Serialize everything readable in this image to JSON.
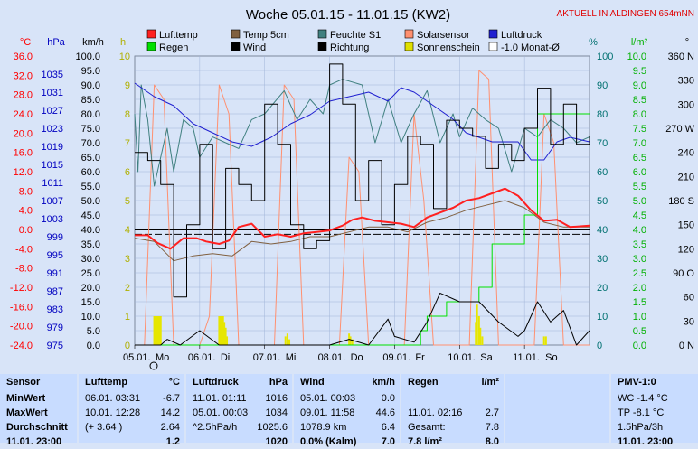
{
  "chart_data": {
    "type": "line",
    "title": "Woche 05.01.15 - 11.01.15 (KW2)",
    "location_note": "AKTUELL IN ALDINGEN 654mNN",
    "x_tick_labels": [
      {
        "date": "05.01.",
        "day": "Mo"
      },
      {
        "date": "06.01.",
        "day": "Di"
      },
      {
        "date": "07.01.",
        "day": "Mi"
      },
      {
        "date": "08.01.",
        "day": "Do"
      },
      {
        "date": "09.01.",
        "day": "Fr"
      },
      {
        "date": "10.01.",
        "day": "Sa"
      },
      {
        "date": "11.01.",
        "day": "So"
      }
    ],
    "x_range_days": [
      0,
      7
    ],
    "axes": [
      {
        "unit": "°C",
        "color": "#ff0000",
        "min": -24,
        "max": 36,
        "ticks": [
          "36.0",
          "32.0",
          "28.0",
          "24.0",
          "20.0",
          "16.0",
          "12.0",
          "8.0",
          "4.0",
          "0.0",
          "-4.0",
          "-8.0",
          "-12.0",
          "-16.0",
          "-20.0",
          "-24.0"
        ]
      },
      {
        "unit": "hPa",
        "color": "#0000c0",
        "min": 975,
        "max": 1039,
        "ticks": [
          "",
          "1035",
          "1031",
          "1027",
          "1023",
          "1019",
          "1015",
          "1011",
          "1007",
          "1003",
          "999",
          "995",
          "991",
          "987",
          "983",
          "979",
          "975"
        ]
      },
      {
        "unit": "km/h",
        "color": "#000000",
        "min": 0,
        "max": 100,
        "ticks": [
          "100.0",
          "95.0",
          "90.0",
          "85.0",
          "80.0",
          "75.0",
          "70.0",
          "65.0",
          "60.0",
          "55.0",
          "50.0",
          "45.0",
          "40.0",
          "35.0",
          "30.0",
          "25.0",
          "20.0",
          "15.0",
          "10.0",
          "5.0",
          "0.0"
        ]
      },
      {
        "unit": "h",
        "color": "#b0b000",
        "min": 0,
        "max": 10,
        "ticks": [
          "10",
          "9",
          "8",
          "7",
          "6",
          "5",
          "4",
          "3",
          "2",
          "1",
          "0"
        ]
      },
      {
        "unit": "%",
        "color": "#007070",
        "min": 0,
        "max": 100,
        "ticks": [
          "100",
          "90",
          "80",
          "70",
          "60",
          "50",
          "40",
          "30",
          "20",
          "10",
          "0"
        ]
      },
      {
        "unit": "l/m²",
        "color": "#00b000",
        "min": 0,
        "max": 10,
        "ticks": [
          "10.0",
          "9.5",
          "9.0",
          "8.5",
          "8.0",
          "7.5",
          "7.0",
          "6.5",
          "6.0",
          "5.5",
          "5.0",
          "4.5",
          "4.0",
          "3.5",
          "3.0",
          "2.5",
          "2.0",
          "1.5",
          "1.0",
          "0.5",
          "0.0"
        ]
      },
      {
        "unit": "°",
        "color": "#000000",
        "min": 0,
        "max": 360,
        "ticks": [
          "360 N",
          "330",
          "300",
          "270 W",
          "240",
          "210",
          "180 S",
          "150",
          "120",
          "90 O",
          "60",
          "30",
          "0 N"
        ]
      }
    ],
    "legend": [
      {
        "name": "Lufttemp",
        "color": "#ff2020"
      },
      {
        "name": "Temp 5cm",
        "color": "#806040"
      },
      {
        "name": "Feuchte S1",
        "color": "#408080"
      },
      {
        "name": "Solarsensor",
        "color": "#ff9070"
      },
      {
        "name": "Luftdruck",
        "color": "#2020d0"
      },
      {
        "name": "Regen",
        "color": "#00e000"
      },
      {
        "name": "Wind",
        "color": "#000000"
      },
      {
        "name": "Richtung",
        "color": "#000000"
      },
      {
        "name": "Sonnenschein",
        "color": "#e0e000"
      },
      {
        "name": "-1.0 Monat-Ø",
        "color": "#ffffff"
      }
    ],
    "series": [
      {
        "name": "Lufttemp",
        "axis": 0,
        "x": [
          0,
          0.2,
          0.35,
          0.55,
          0.75,
          0.95,
          1.1,
          1.3,
          1.45,
          1.6,
          1.8,
          2.0,
          2.2,
          2.4,
          2.6,
          2.8,
          3.0,
          3.2,
          3.35,
          3.5,
          3.7,
          3.9,
          4.1,
          4.3,
          4.5,
          4.7,
          4.9,
          5.1,
          5.3,
          5.5,
          5.7,
          5.9,
          6.1,
          6.3,
          6.5,
          6.7,
          7.0
        ],
        "values": [
          -1.2,
          -1.2,
          -2.8,
          -4.0,
          -1.8,
          -1.8,
          -2.5,
          -3.0,
          -2.3,
          0.5,
          1.2,
          -1.5,
          -1.0,
          -1.5,
          -0.8,
          -0.5,
          -0.2,
          0.8,
          2.0,
          2.5,
          1.8,
          1.5,
          1.2,
          0.5,
          2.5,
          3.5,
          4.5,
          6.0,
          6.5,
          7.5,
          8.5,
          7.0,
          4.0,
          1.8,
          2.0,
          0.5,
          0.8
        ]
      },
      {
        "name": "Temp 5cm",
        "axis": 0,
        "x": [
          0,
          0.3,
          0.6,
          0.9,
          1.2,
          1.5,
          1.8,
          2.1,
          2.4,
          2.7,
          3.0,
          3.3,
          3.6,
          3.9,
          4.2,
          4.5,
          4.8,
          5.1,
          5.4,
          5.7,
          6.0,
          6.3,
          6.6,
          7.0
        ],
        "values": [
          -1.8,
          -2.5,
          -6.5,
          -5.5,
          -5.0,
          -5.5,
          -2.5,
          -3.0,
          -2.5,
          -1.5,
          -1.5,
          -0.5,
          0.5,
          0.5,
          -0.5,
          1.5,
          2.5,
          4.0,
          5.0,
          6.0,
          4.5,
          1.5,
          0.5,
          0.5
        ]
      },
      {
        "name": "Feuchte S1",
        "axis": 4,
        "x": [
          0,
          0.05,
          0.1,
          0.2,
          0.3,
          0.5,
          0.6,
          0.75,
          0.9,
          1.0,
          1.2,
          1.4,
          1.6,
          1.8,
          2.0,
          2.3,
          2.5,
          2.7,
          2.9,
          3.0,
          3.2,
          3.5,
          3.7,
          3.9,
          4.1,
          4.3,
          4.5,
          4.7,
          4.9,
          5.0,
          5.2,
          5.4,
          5.6,
          5.8,
          6.0,
          6.2,
          6.4,
          6.6,
          6.8,
          7.0
        ],
        "values": [
          80,
          60,
          90,
          78,
          55,
          75,
          60,
          78,
          75,
          65,
          72,
          70,
          68,
          78,
          80,
          88,
          78,
          85,
          80,
          90,
          92,
          90,
          70,
          85,
          70,
          80,
          88,
          70,
          80,
          72,
          82,
          78,
          75,
          60,
          75,
          72,
          78,
          75,
          70,
          72
        ]
      },
      {
        "name": "Luftdruck",
        "axis": 1,
        "x": [
          0,
          0.3,
          0.6,
          0.9,
          1.2,
          1.5,
          1.8,
          2.1,
          2.4,
          2.7,
          3.0,
          3.3,
          3.6,
          3.9,
          4.1,
          4.3,
          4.5,
          4.7,
          4.9,
          5.1,
          5.3,
          5.5,
          5.7,
          5.9,
          6.1,
          6.3,
          6.5,
          6.7,
          7.0
        ],
        "values": [
          1033,
          1030,
          1028,
          1024,
          1022,
          1020,
          1019,
          1021,
          1024,
          1026,
          1029,
          1030,
          1031,
          1029,
          1032,
          1031,
          1029,
          1027,
          1025,
          1022,
          1021,
          1020,
          1020,
          1020,
          1016,
          1016,
          1020,
          1021,
          1020
        ]
      },
      {
        "name": "Regen",
        "axis": 5,
        "x": [
          0,
          4.0,
          4.4,
          4.5,
          4.8,
          5.3,
          5.5,
          5.8,
          6.0,
          6.2,
          6.5,
          7.0
        ],
        "values": [
          0,
          0,
          0.5,
          1.0,
          1.5,
          2.0,
          3.5,
          3.5,
          4.5,
          8.0,
          8.0,
          8.0
        ]
      },
      {
        "name": "Wind",
        "axis": 2,
        "x": [
          0,
          0.4,
          0.5,
          0.7,
          1.0,
          1.3,
          1.6,
          2.0,
          2.2,
          2.5,
          2.8,
          3.0,
          3.3,
          3.6,
          3.9,
          4.0,
          4.3,
          4.5,
          4.7,
          5.0,
          5.3,
          5.6,
          5.9,
          6.0,
          6.2,
          6.4,
          6.6,
          6.8,
          7.0
        ],
        "values": [
          0,
          0,
          2,
          0,
          5,
          0,
          0,
          0,
          0,
          0,
          0,
          0,
          2,
          0,
          9,
          3,
          1,
          8,
          18,
          15,
          15,
          8,
          3,
          5,
          15,
          8,
          12,
          0,
          5
        ]
      },
      {
        "name": "Richtung",
        "axis": 6,
        "x": [
          0,
          0.2,
          0.4,
          0.6,
          0.8,
          1.0,
          1.2,
          1.4,
          1.6,
          1.8,
          2.0,
          2.2,
          2.4,
          2.6,
          2.8,
          3.0,
          3.2,
          3.4,
          3.6,
          3.8,
          4.0,
          4.2,
          4.4,
          4.6,
          4.8,
          5.0,
          5.2,
          5.4,
          5.6,
          5.8,
          6.0,
          6.2,
          6.4,
          6.6,
          6.8,
          7.0
        ],
        "values": [
          240,
          230,
          200,
          60,
          150,
          250,
          120,
          220,
          200,
          180,
          300,
          250,
          150,
          120,
          130,
          350,
          300,
          180,
          230,
          150,
          200,
          260,
          250,
          170,
          280,
          270,
          260,
          220,
          250,
          230,
          270,
          320,
          250,
          300,
          250,
          260
        ]
      },
      {
        "name": "Solarsensor",
        "axis": 2,
        "x": [
          0,
          0.15,
          0.3,
          0.45,
          0.6,
          1.0,
          1.15,
          1.3,
          1.45,
          1.6,
          2.0,
          2.15,
          2.3,
          2.45,
          2.6,
          3.0,
          3.15,
          3.3,
          3.45,
          3.6,
          4.0,
          4.15,
          4.3,
          4.45,
          4.6,
          5.0,
          5.15,
          5.3,
          5.45,
          5.6,
          6.0,
          6.15,
          6.3,
          6.45,
          6.6,
          7.0
        ],
        "values": [
          0,
          0,
          90,
          85,
          0,
          0,
          10,
          90,
          80,
          0,
          0,
          0,
          90,
          85,
          0,
          0,
          0,
          65,
          60,
          0,
          0,
          0,
          80,
          50,
          0,
          0,
          0,
          95,
          92,
          0,
          0,
          0,
          80,
          70,
          0,
          0
        ]
      },
      {
        "name": "Sonnenschein",
        "axis": 3,
        "type": "bar",
        "x": [
          0.3,
          0.32,
          0.34,
          0.36,
          0.38,
          0.4,
          1.3,
          1.32,
          1.34,
          1.36,
          1.38,
          1.4,
          1.42,
          2.32,
          2.35,
          2.38,
          3.3,
          3.32,
          3.35,
          5.25,
          5.27,
          5.3,
          5.32,
          5.35,
          6.3,
          6.33
        ],
        "values": [
          1.0,
          1.0,
          1.0,
          1.0,
          1.0,
          1.0,
          1.0,
          1.0,
          1.0,
          1.0,
          0.8,
          0.6,
          0.3,
          0.3,
          0.4,
          0.2,
          0.4,
          0.3,
          0.2,
          0.8,
          1.4,
          1.0,
          0.6,
          0.3,
          0.3,
          0.3
        ]
      }
    ],
    "reference_lines": [
      {
        "name": "0 °C",
        "axis": 0,
        "value": 0
      },
      {
        "name": "-1.0 Monat-Ø",
        "axis": 0,
        "value": -1.0
      }
    ]
  },
  "table": {
    "sensor": {
      "header": "Sensor",
      "rows": [
        "MinWert",
        "MaxWert",
        "Durchschnitt",
        "11.01. 23:00"
      ]
    },
    "lufttemp": {
      "header": "Lufttemp",
      "unit": "°C",
      "rows": [
        [
          "06.01.  03:31",
          "-6.7"
        ],
        [
          "10.01.  12:28",
          "14.2"
        ],
        [
          "(+ 3.64 )",
          "2.64"
        ],
        [
          "",
          "1.2"
        ]
      ]
    },
    "luftdruck": {
      "header": "Luftdruck",
      "unit": "hPa",
      "rows": [
        [
          "11.01.  01:11",
          "1016"
        ],
        [
          "05.01.  00:03",
          "1034"
        ],
        [
          "^2.5hPa/h",
          "1025.6"
        ],
        [
          "",
          "1020"
        ]
      ]
    },
    "wind": {
      "header": "Wind",
      "unit": "km/h",
      "rows": [
        [
          "05.01.  00:03",
          "0.0"
        ],
        [
          "09.01.  11:58",
          "44.6"
        ],
        [
          "1078.9 km",
          "6.4"
        ],
        [
          "0.0% (Kalm)",
          "7.0"
        ]
      ]
    },
    "regen": {
      "header": "Regen",
      "unit": "l/m²",
      "rows": [
        [
          "",
          ""
        ],
        [
          "11.01.  02:16",
          "2.7"
        ],
        [
          "Gesamt:",
          "7.8"
        ],
        [
          "7.8 l/m²",
          "8.0"
        ]
      ]
    },
    "pmv": {
      "header": "PMV-1:0",
      "rows": [
        "WC -1.4 °C",
        "TP -8.1 °C",
        "1.5hPa/3h",
        "11.01. 23:00"
      ]
    }
  }
}
